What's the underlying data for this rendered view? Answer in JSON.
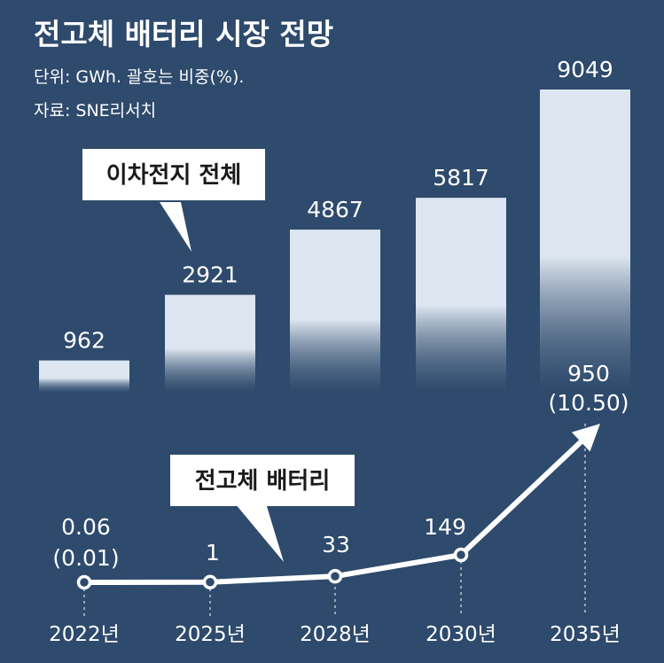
{
  "title": "전고체 배터리 시장 전망",
  "unit_note": "단위: GWh. 괄호는 비중(%).",
  "source_note": "자료: SNE리서치",
  "colors": {
    "background": "#2e4a6c",
    "bar": "#dde6f0",
    "line": "#ffffff"
  },
  "chart_data": [
    {
      "type": "bar",
      "callout": "이차전지 전체",
      "categories": [
        "2022년",
        "2025년",
        "2028년",
        "2030년",
        "2035년"
      ],
      "values": [
        962,
        2921,
        4867,
        5817,
        9049
      ],
      "value_labels": [
        "962",
        "2921",
        "4867",
        "5817",
        "9049"
      ]
    },
    {
      "type": "line",
      "callout": "전고체 배터리",
      "categories": [
        "2022년",
        "2025년",
        "2028년",
        "2030년",
        "2035년"
      ],
      "values": [
        0.06,
        1,
        33,
        149,
        950
      ],
      "value_labels": [
        "0.06",
        "1",
        "33",
        "149",
        "950"
      ],
      "share_labels": [
        "(0.01)",
        "",
        "",
        "",
        "(10.50)"
      ]
    }
  ]
}
